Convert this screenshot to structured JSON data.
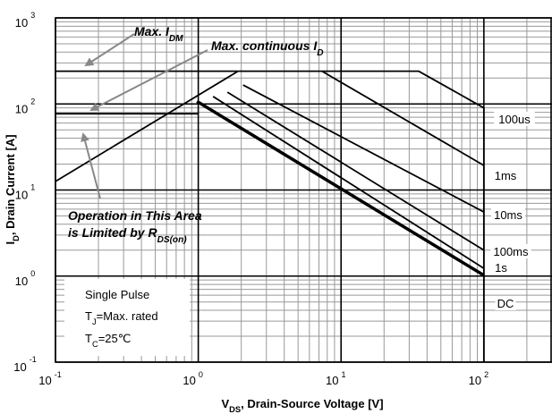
{
  "chart_data": {
    "type": "line",
    "log_x": true,
    "log_y": true,
    "grid": true,
    "minor_grid": true,
    "xlim": [
      0.1,
      300
    ],
    "ylim": [
      0.1,
      1000
    ],
    "xticks": [
      {
        "value": 0.1,
        "label": "10",
        "exponent": "-1"
      },
      {
        "value": 1,
        "label": "10",
        "exponent": "0"
      },
      {
        "value": 10,
        "label": "10",
        "exponent": "1"
      },
      {
        "value": 100,
        "label": "10",
        "exponent": "2"
      }
    ],
    "yticks": [
      {
        "value": 0.1,
        "label": "10",
        "exponent": "-1"
      },
      {
        "value": 1,
        "label": "10",
        "exponent": "0"
      },
      {
        "value": 10,
        "label": "10",
        "exponent": "1"
      },
      {
        "value": 100,
        "label": "10",
        "exponent": "2"
      },
      {
        "value": 1000,
        "label": "10",
        "exponent": "3"
      }
    ],
    "x_label": [
      {
        "text": "V"
      },
      {
        "sub": "DS"
      },
      {
        "text": ", Drain-Source Voltage [V]"
      }
    ],
    "y_label": [
      {
        "text": "I"
      },
      {
        "sub": "D"
      },
      {
        "text": ", Drain Current [A]"
      }
    ],
    "series": [
      {
        "color": "#000",
        "x": [
          0.1,
          1.9
        ],
        "values": [
          240,
          240
        ]
      },
      {
        "color": "#000",
        "x": [
          0.1,
          1.0
        ],
        "values": [
          77,
          77
        ]
      },
      {
        "color": "#000",
        "x": [
          0.1,
          1.9
        ],
        "values": [
          12.6,
          240
        ]
      },
      {
        "name": "100us",
        "color": "#000",
        "x": [
          1.9,
          35,
          100
        ],
        "values": [
          240,
          240,
          90
        ]
      },
      {
        "color": "#000",
        "x": [
          100,
          100
        ],
        "values": [
          90,
          0.1
        ]
      },
      {
        "name": "1ms",
        "color": "#000",
        "x": [
          7.35,
          100
        ],
        "values": [
          240,
          19.3
        ]
      },
      {
        "name": "10ms",
        "color": "#000",
        "x": [
          2.06,
          100
        ],
        "values": [
          166,
          5.56
        ]
      },
      {
        "name": "100ms",
        "color": "#000",
        "x": [
          1.6,
          100
        ],
        "values": [
          137,
          2.0
        ]
      },
      {
        "name": "1s",
        "color": "#000",
        "x": [
          1.27,
          100
        ],
        "values": [
          122,
          1.23
        ]
      },
      {
        "name": "DC",
        "color": "#000",
        "x": [
          0.98,
          100
        ],
        "values": [
          107,
          1.02
        ]
      }
    ],
    "annotations": [
      {
        "parts": [
          {
            "text": "Max. I"
          },
          {
            "sub": "DM"
          }
        ]
      },
      {
        "parts": [
          {
            "text": "Max. continuous I"
          },
          {
            "sub": "D"
          }
        ]
      },
      {
        "parts": [
          {
            "text": "Operation in This Area"
          }
        ]
      },
      {
        "parts": [
          {
            "text": "is Limited by R"
          },
          {
            "sub": "DS(on)"
          }
        ]
      }
    ],
    "notes": [
      {
        "parts": [
          {
            "text": "Single Pulse"
          }
        ]
      },
      {
        "parts": [
          {
            "text": "T"
          },
          {
            "sub": "J"
          },
          {
            "text": "=Max. rated"
          }
        ]
      },
      {
        "parts": [
          {
            "text": "T"
          },
          {
            "sub": "C"
          },
          {
            "text": "=25℃"
          }
        ]
      }
    ]
  }
}
